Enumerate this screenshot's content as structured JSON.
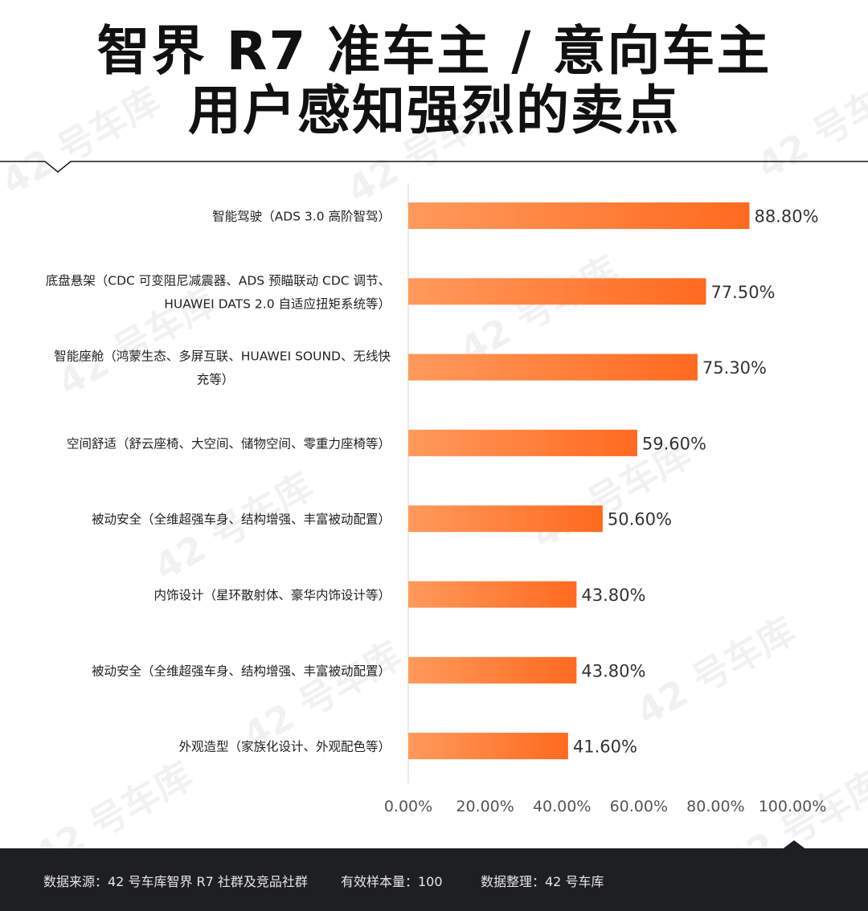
{
  "title_line1": "智界 R7 准车主 / 意向车主",
  "title_line2": "用户感知强烈的卖点",
  "watermark_text": "42 号车库",
  "colors": {
    "bar_light": "#ff9a5c",
    "bar_dark": "#ff6a1f",
    "footer_bg": "#1e1f22",
    "axis": "#e3e3e3"
  },
  "chart_data": {
    "type": "bar",
    "orientation": "horizontal",
    "categories": [
      [
        "智能驾驶（ADS 3.0 高阶智驾）"
      ],
      [
        "底盘悬架（CDC 可变阻尼减震器、ADS 预瞄联动 CDC 调节、",
        "HUAWEI DATS 2.0 自适应扭矩系统等）"
      ],
      [
        "智能座舱（鸿蒙生态、多屏互联、HUAWEI SOUND、无线快",
        "充等）"
      ],
      [
        "空间舒适（舒云座椅、大空间、储物空间、零重力座椅等）"
      ],
      [
        "被动安全（全维超强车身、结构增强、丰富被动配置）"
      ],
      [
        "内饰设计（星环散射体、豪华内饰设计等）"
      ],
      [
        "被动安全（全维超强车身、结构增强、丰富被动配置）"
      ],
      [
        "外观造型（家族化设计、外观配色等）"
      ]
    ],
    "values": [
      88.8,
      77.5,
      75.3,
      59.6,
      50.6,
      43.8,
      43.8,
      41.6
    ],
    "value_labels": [
      "88.80%",
      "77.50%",
      "75.30%",
      "59.60%",
      "50.60%",
      "43.80%",
      "43.80%",
      "41.60%"
    ],
    "xlim": [
      0,
      100
    ],
    "xticks": [
      "0.00%",
      "20.00%",
      "40.00%",
      "60.00%",
      "80.00%",
      "100.00%"
    ],
    "grid": false,
    "legend": "none"
  },
  "footer": {
    "source": "数据来源：42 号车库智界 R7 社群及竞品社群",
    "sample": "有效样本量：100",
    "compiled": "数据整理：42 号车库"
  }
}
